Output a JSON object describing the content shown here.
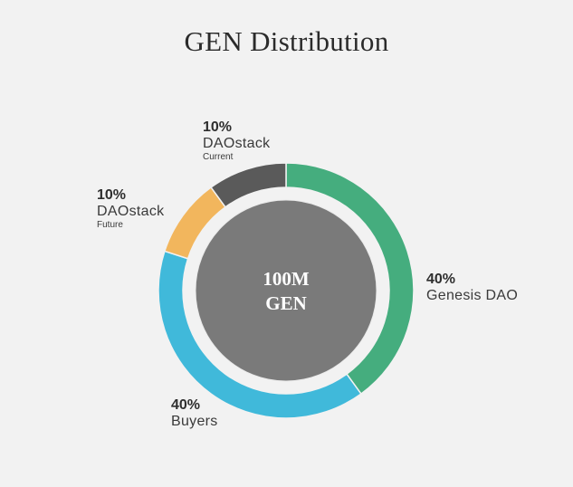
{
  "title": "GEN Distribution",
  "center": {
    "line1": "100M",
    "line2": "GEN"
  },
  "colors": {
    "genesis": "#45ad7e",
    "buyers": "#40b9da",
    "future": "#f2b65d",
    "current": "#5a5a5a",
    "inner": "#7a7a7a",
    "background": "#f2f2f2"
  },
  "chart_data": {
    "type": "pie",
    "title": "GEN Distribution",
    "total_label": "100M GEN",
    "slices": [
      {
        "label": "Genesis DAO",
        "sublabel": "",
        "value": 40,
        "color": "#45ad7e"
      },
      {
        "label": "Buyers",
        "sublabel": "",
        "value": 40,
        "color": "#40b9da"
      },
      {
        "label": "DAOstack",
        "sublabel": "Future",
        "value": 10,
        "color": "#f2b65d"
      },
      {
        "label": "DAOstack",
        "sublabel": "Current",
        "value": 10,
        "color": "#5a5a5a"
      }
    ]
  },
  "labels": {
    "current": {
      "pct": "10%",
      "name": "DAOstack",
      "sub": "Current"
    },
    "future": {
      "pct": "10%",
      "name": "DAOstack",
      "sub": "Future"
    },
    "genesis": {
      "pct": "40%",
      "name": "Genesis DAO"
    },
    "buyers": {
      "pct": "40%",
      "name": "Buyers"
    }
  }
}
